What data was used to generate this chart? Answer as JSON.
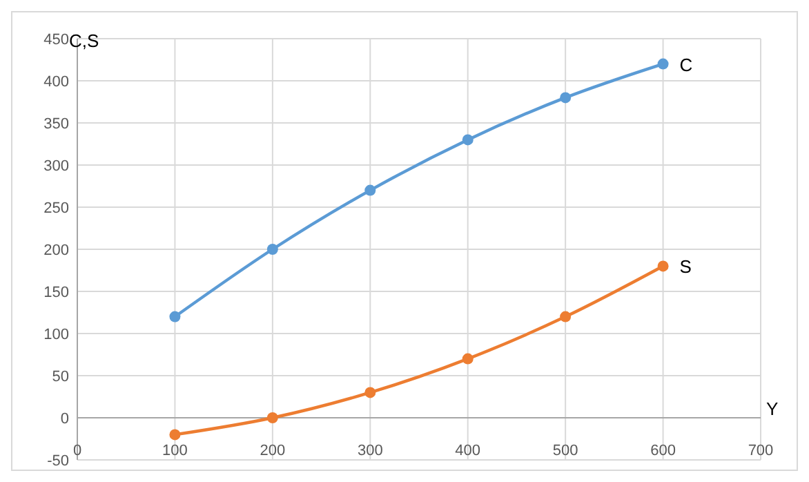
{
  "chart_data": {
    "type": "line",
    "xlabel": "Y",
    "ylabel": "C,S",
    "x": [
      100,
      200,
      300,
      400,
      500,
      600
    ],
    "series": [
      {
        "name": "C",
        "color": "#5b9bd5",
        "values": [
          120,
          200,
          270,
          330,
          380,
          420
        ]
      },
      {
        "name": "S",
        "color": "#ed7d31",
        "values": [
          -20,
          0,
          30,
          70,
          120,
          180
        ]
      }
    ],
    "xlim": [
      0,
      700
    ],
    "xticks": [
      0,
      100,
      200,
      300,
      400,
      500,
      600,
      700
    ],
    "ylim": [
      -50,
      450
    ],
    "yticks": [
      -50,
      0,
      50,
      100,
      150,
      200,
      250,
      300,
      350,
      400,
      450
    ],
    "grid": true,
    "marker": "circle",
    "line_style": "solid"
  }
}
